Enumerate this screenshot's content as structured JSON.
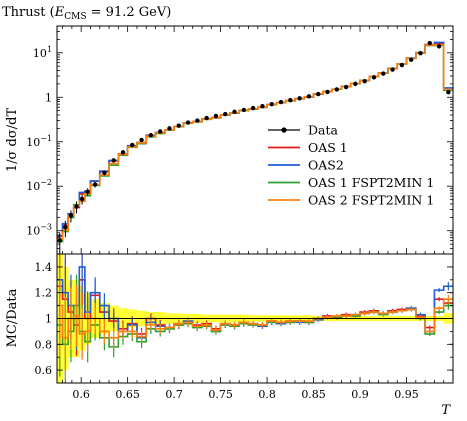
{
  "chart_data": {
    "type": "line",
    "title": "Thrust (E_CMS = 91.2 GeV)",
    "title_main": "Thrust (",
    "title_var": "E",
    "title_sub": "CMS",
    "title_tail": " = 91.2 GeV)",
    "xlabel": "T",
    "ylabel": "1/σ dσ/dT",
    "ratio_ylabel": "MC/Data",
    "xlim": [
      0.574,
      1.0
    ],
    "ylim": [
      0.0003,
      40
    ],
    "yscale": "log",
    "ratio_ylim": [
      0.5,
      1.5
    ],
    "grid": false,
    "legend_position": "right-center",
    "x_ticks": [
      {
        "v": 0.6,
        "label": "0.6"
      },
      {
        "v": 0.65,
        "label": "0.65"
      },
      {
        "v": 0.7,
        "label": "0.7"
      },
      {
        "v": 0.75,
        "label": "0.75"
      },
      {
        "v": 0.8,
        "label": "0.8"
      },
      {
        "v": 0.85,
        "label": "0.85"
      },
      {
        "v": 0.9,
        "label": "0.9"
      },
      {
        "v": 0.95,
        "label": "0.95"
      }
    ],
    "y_ticks": [
      {
        "v": 0.001,
        "base": "10",
        "exp": "−3"
      },
      {
        "v": 0.01,
        "base": "10",
        "exp": "−2"
      },
      {
        "v": 0.1,
        "base": "10",
        "exp": "−1"
      },
      {
        "v": 1,
        "base": "1",
        "exp": ""
      },
      {
        "v": 10,
        "base": "10",
        "exp": "1"
      }
    ],
    "ratio_ticks": [
      {
        "v": 0.6,
        "label": "0.6"
      },
      {
        "v": 0.8,
        "label": "0.8"
      },
      {
        "v": 1.0,
        "label": "1"
      },
      {
        "v": 1.2,
        "label": "1.2"
      },
      {
        "v": 1.4,
        "label": "1.4"
      }
    ],
    "bin_edges": [
      0.574,
      0.58,
      0.586,
      0.592,
      0.598,
      0.604,
      0.61,
      0.62,
      0.63,
      0.64,
      0.65,
      0.66,
      0.67,
      0.68,
      0.69,
      0.7,
      0.71,
      0.72,
      0.73,
      0.74,
      0.75,
      0.76,
      0.77,
      0.78,
      0.79,
      0.8,
      0.81,
      0.82,
      0.83,
      0.84,
      0.85,
      0.86,
      0.87,
      0.88,
      0.89,
      0.9,
      0.91,
      0.92,
      0.93,
      0.94,
      0.95,
      0.96,
      0.97,
      0.98,
      0.99,
      1.0
    ],
    "data_values": [
      0.0006,
      0.0012,
      0.0022,
      0.0035,
      0.0052,
      0.0075,
      0.011,
      0.02,
      0.038,
      0.058,
      0.085,
      0.11,
      0.14,
      0.17,
      0.2,
      0.23,
      0.27,
      0.3,
      0.34,
      0.38,
      0.42,
      0.47,
      0.52,
      0.57,
      0.63,
      0.7,
      0.78,
      0.86,
      0.95,
      1.05,
      1.18,
      1.32,
      1.5,
      1.7,
      2.0,
      2.3,
      2.8,
      3.4,
      4.2,
      5.3,
      7.0,
      9.8,
      16.5,
      14.0,
      1.3
    ],
    "data_errors": [
      0.5,
      0.4,
      0.3,
      0.3,
      0.25,
      0.2,
      0.15,
      0.12,
      0.1,
      0.08,
      0.07,
      0.06,
      0.05,
      0.05,
      0.04,
      0.04,
      0.035,
      0.035,
      0.03,
      0.03,
      0.03,
      0.03,
      0.03,
      0.025,
      0.025,
      0.025,
      0.025,
      0.025,
      0.025,
      0.025,
      0.02,
      0.02,
      0.02,
      0.02,
      0.02,
      0.02,
      0.02,
      0.02,
      0.02,
      0.02,
      0.02,
      0.02,
      0.02,
      0.02,
      0.04
    ],
    "series": [
      {
        "name": "Data",
        "color": "#000000"
      },
      {
        "name": "OAS 1",
        "color": "#e41a1c",
        "ratio": [
          1.25,
          1.15,
          1.05,
          0.95,
          1.3,
          1.0,
          1.18,
          1.05,
          0.98,
          0.92,
          0.96,
          0.88,
          1.0,
          0.95,
          0.93,
          0.95,
          0.97,
          0.95,
          0.96,
          0.92,
          0.96,
          0.95,
          0.97,
          0.96,
          0.95,
          0.98,
          0.97,
          0.98,
          0.98,
          0.97,
          1.0,
          1.02,
          1.01,
          1.03,
          1.02,
          1.05,
          1.06,
          1.04,
          1.06,
          1.07,
          1.08,
          1.02,
          0.93,
          1.15,
          1.12
        ]
      },
      {
        "name": "OAS2",
        "color": "#1f5fd6",
        "ratio": [
          1.3,
          1.2,
          1.1,
          1.0,
          1.4,
          1.05,
          1.2,
          1.1,
          1.0,
          0.9,
          0.95,
          0.85,
          0.97,
          0.94,
          0.92,
          0.96,
          0.98,
          0.94,
          0.95,
          0.9,
          0.95,
          0.94,
          0.96,
          0.95,
          0.94,
          0.97,
          0.96,
          0.97,
          0.97,
          0.97,
          0.99,
          1.01,
          1.01,
          1.02,
          1.03,
          1.04,
          1.05,
          1.04,
          1.05,
          1.06,
          1.08,
          1.03,
          0.9,
          1.22,
          1.25
        ]
      },
      {
        "name": "OAS 1 FSPT2MIN 1",
        "color": "#2ca02c",
        "ratio": [
          0.95,
          0.8,
          0.9,
          1.1,
          0.9,
          0.82,
          0.95,
          0.85,
          0.78,
          0.86,
          0.88,
          0.82,
          0.92,
          0.9,
          0.92,
          0.95,
          0.96,
          0.93,
          0.94,
          0.9,
          0.95,
          0.94,
          0.96,
          0.95,
          0.95,
          0.97,
          0.97,
          0.97,
          0.98,
          0.97,
          1.0,
          1.01,
          1.01,
          1.02,
          1.02,
          1.04,
          1.05,
          1.03,
          1.05,
          1.06,
          1.07,
          1.0,
          0.88,
          1.05,
          1.1
        ]
      },
      {
        "name": "OAS 2 FSPT2MIN 1",
        "color": "#ff7f0e",
        "ratio": [
          1.1,
          0.85,
          1.0,
          1.02,
          0.88,
          0.9,
          1.0,
          0.9,
          0.85,
          0.9,
          0.9,
          0.86,
          0.95,
          0.92,
          0.93,
          0.96,
          0.97,
          0.94,
          0.95,
          0.91,
          0.96,
          0.95,
          0.97,
          0.96,
          0.95,
          0.98,
          0.97,
          0.98,
          0.98,
          0.98,
          1.0,
          1.01,
          1.02,
          1.02,
          1.03,
          1.04,
          1.05,
          1.04,
          1.05,
          1.06,
          1.07,
          1.01,
          0.9,
          1.08,
          1.15
        ]
      }
    ]
  }
}
